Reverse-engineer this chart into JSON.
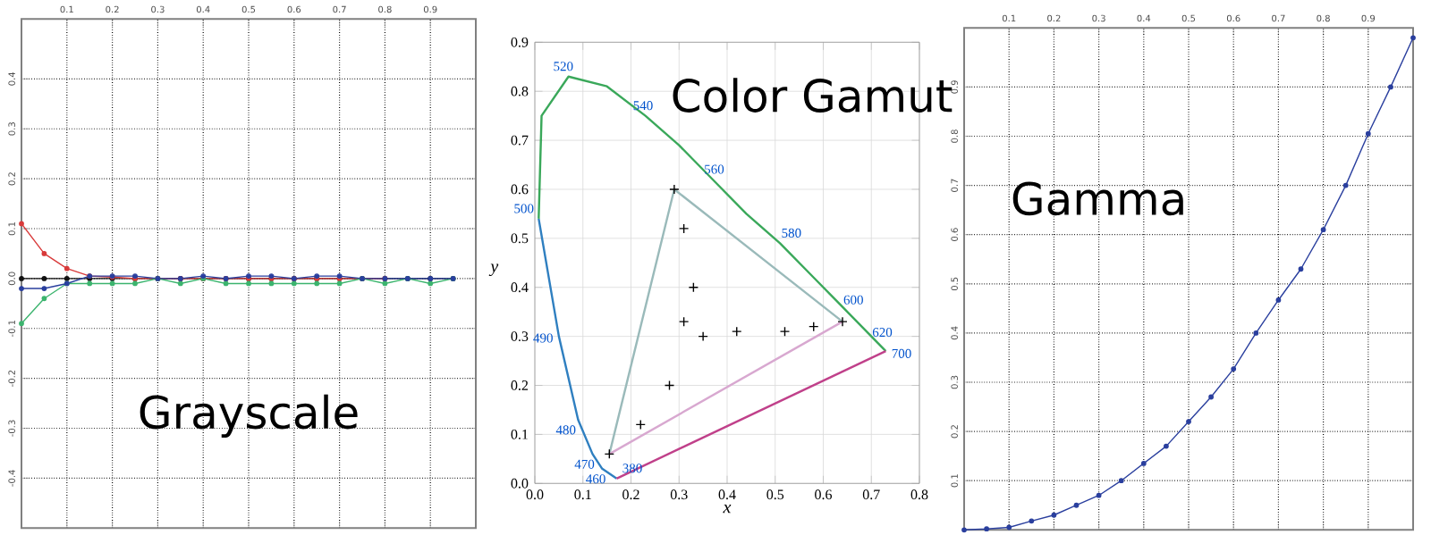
{
  "chart_data": [
    {
      "type": "line",
      "title": "Grayscale",
      "x": [
        0,
        0.05,
        0.1,
        0.15,
        0.2,
        0.25,
        0.3,
        0.35,
        0.4,
        0.45,
        0.5,
        0.55,
        0.6,
        0.65,
        0.7,
        0.75,
        0.8,
        0.85,
        0.9,
        0.95
      ],
      "series": [
        {
          "color": "#111111",
          "values": [
            0,
            0,
            0,
            0,
            0,
            0,
            0,
            0,
            0,
            0,
            0,
            0,
            0,
            0,
            0,
            0,
            0,
            0,
            0,
            0
          ]
        },
        {
          "color": "#d83a3a",
          "values": [
            0.11,
            0.05,
            0.02,
            0.005,
            0.003,
            0,
            0,
            0,
            0,
            0,
            0,
            0,
            0,
            0,
            0,
            0,
            0,
            null,
            null,
            null
          ]
        },
        {
          "color": "#3cb46e",
          "values": [
            -0.09,
            -0.04,
            -0.01,
            -0.01,
            -0.01,
            -0.01,
            0,
            -0.01,
            0,
            -0.01,
            -0.01,
            -0.01,
            -0.01,
            -0.01,
            -0.01,
            0,
            -0.01,
            0,
            -0.01,
            0
          ]
        },
        {
          "color": "#2a3f9e",
          "values": [
            -0.02,
            -0.02,
            -0.01,
            0.005,
            0.005,
            0.005,
            0,
            0,
            0.005,
            0,
            0.005,
            0.005,
            0,
            0.005,
            0.005,
            0,
            0,
            0,
            0,
            0
          ]
        }
      ],
      "xlim": [
        0,
        1
      ],
      "ylim": [
        -0.5,
        0.52
      ],
      "xticks": [
        0.1,
        0.2,
        0.3,
        0.4,
        0.5,
        0.6,
        0.7,
        0.8,
        0.9
      ],
      "yticks": [
        {
          "value": -0.4,
          "label": "-0.4"
        },
        {
          "value": -0.3,
          "label": "-0.3"
        },
        {
          "value": -0.2,
          "label": "-0.2"
        },
        {
          "value": -0.1,
          "label": "-0.1"
        },
        {
          "value": 0,
          "label": "0.0"
        },
        0.1,
        0.2,
        0.3,
        0.4
      ],
      "grid": true,
      "marker": "circle",
      "line_style": "solid"
    },
    {
      "type": "line",
      "title": "Color Gamut",
      "xlabel": "x",
      "ylabel": "y",
      "marker": "none",
      "series": [
        {
          "color": "#2f7fc0",
          "x": [
            0.008,
            0.05,
            0.09,
            0.12,
            0.14,
            0.17
          ],
          "values": [
            0.54,
            0.3,
            0.13,
            0.06,
            0.03,
            0.01
          ]
        },
        {
          "color": "#3aa85a",
          "x": [
            0.008,
            0.014,
            0.07,
            0.15,
            0.23,
            0.3,
            0.37,
            0.44,
            0.51,
            0.58,
            0.63,
            0.69,
            0.73
          ],
          "values": [
            0.54,
            0.75,
            0.83,
            0.81,
            0.75,
            0.69,
            0.62,
            0.55,
            0.49,
            0.42,
            0.37,
            0.31,
            0.27
          ]
        },
        {
          "color": "#c0408a",
          "x": [
            0.17,
            0.73
          ],
          "values": [
            0.01,
            0.27
          ]
        },
        {
          "color": "#9ababa",
          "x": [
            0.155,
            0.29,
            0.64
          ],
          "values": [
            0.06,
            0.6,
            0.33
          ]
        },
        {
          "color": "#d8a8d0",
          "x": [
            0.155,
            0.64
          ],
          "values": [
            0.06,
            0.33
          ]
        },
        {
          "type": "scatter",
          "marker": "cross",
          "color": "#000000",
          "x": [
            0.29,
            0.31,
            0.33,
            0.31,
            0.35,
            0.42,
            0.52,
            0.58,
            0.64,
            0.28,
            0.22,
            0.155
          ],
          "values": [
            0.6,
            0.52,
            0.4,
            0.33,
            0.3,
            0.31,
            0.31,
            0.32,
            0.33,
            0.2,
            0.12,
            0.06
          ]
        }
      ],
      "xlim": [
        0,
        0.8
      ],
      "ylim": [
        0,
        0.9
      ],
      "xticks": [
        {
          "value": 0,
          "label": "0.0"
        },
        0.1,
        0.2,
        0.3,
        0.4,
        0.5,
        0.6,
        0.7,
        0.8
      ],
      "yticks": [
        {
          "value": 0,
          "label": "0.0"
        },
        0.1,
        0.2,
        0.3,
        0.4,
        0.5,
        0.6,
        0.7,
        0.8,
        0.9
      ],
      "grid": true,
      "annotations": [
        {
          "text": "380",
          "x": 0.17,
          "y": 0.01
        },
        {
          "text": "460",
          "x": 0.14,
          "y": 0.03
        },
        {
          "text": "470",
          "x": 0.12,
          "y": 0.06
        },
        {
          "text": "480",
          "x": 0.09,
          "y": 0.13
        },
        {
          "text": "490",
          "x": 0.05,
          "y": 0.3
        },
        {
          "text": "500",
          "x": 0.01,
          "y": 0.54
        },
        {
          "text": "520",
          "x": 0.07,
          "y": 0.83
        },
        {
          "text": "540",
          "x": 0.23,
          "y": 0.75
        },
        {
          "text": "560",
          "x": 0.37,
          "y": 0.62
        },
        {
          "text": "580",
          "x": 0.51,
          "y": 0.49
        },
        {
          "text": "600",
          "x": 0.63,
          "y": 0.37
        },
        {
          "text": "620",
          "x": 0.69,
          "y": 0.31
        },
        {
          "text": "700",
          "x": 0.73,
          "y": 0.27
        }
      ]
    },
    {
      "type": "line",
      "title": "Gamma",
      "x": [
        0,
        0.05,
        0.1,
        0.15,
        0.2,
        0.25,
        0.3,
        0.35,
        0.4,
        0.45,
        0.5,
        0.55,
        0.6,
        0.65,
        0.7,
        0.75,
        0.8,
        0.85,
        0.9,
        0.95,
        1.0
      ],
      "series": [
        {
          "color": "#2a3f9e",
          "values": [
            0,
            0.002,
            0.005,
            0.018,
            0.03,
            0.05,
            0.07,
            0.1,
            0.135,
            0.17,
            0.22,
            0.27,
            0.327,
            0.4,
            0.467,
            0.53,
            0.61,
            0.7,
            0.805,
            0.9,
            1.0
          ]
        }
      ],
      "xlim": [
        0,
        1
      ],
      "ylim": [
        0,
        1.02
      ],
      "xticks": [
        0.1,
        0.2,
        0.3,
        0.4,
        0.5,
        0.6,
        0.7,
        0.8,
        0.9
      ],
      "yticks": [
        0.1,
        0.2,
        0.3,
        0.4,
        0.5,
        0.6,
        0.7,
        0.8,
        0.9
      ],
      "grid": true,
      "marker": "circle",
      "line_style": "solid"
    }
  ]
}
